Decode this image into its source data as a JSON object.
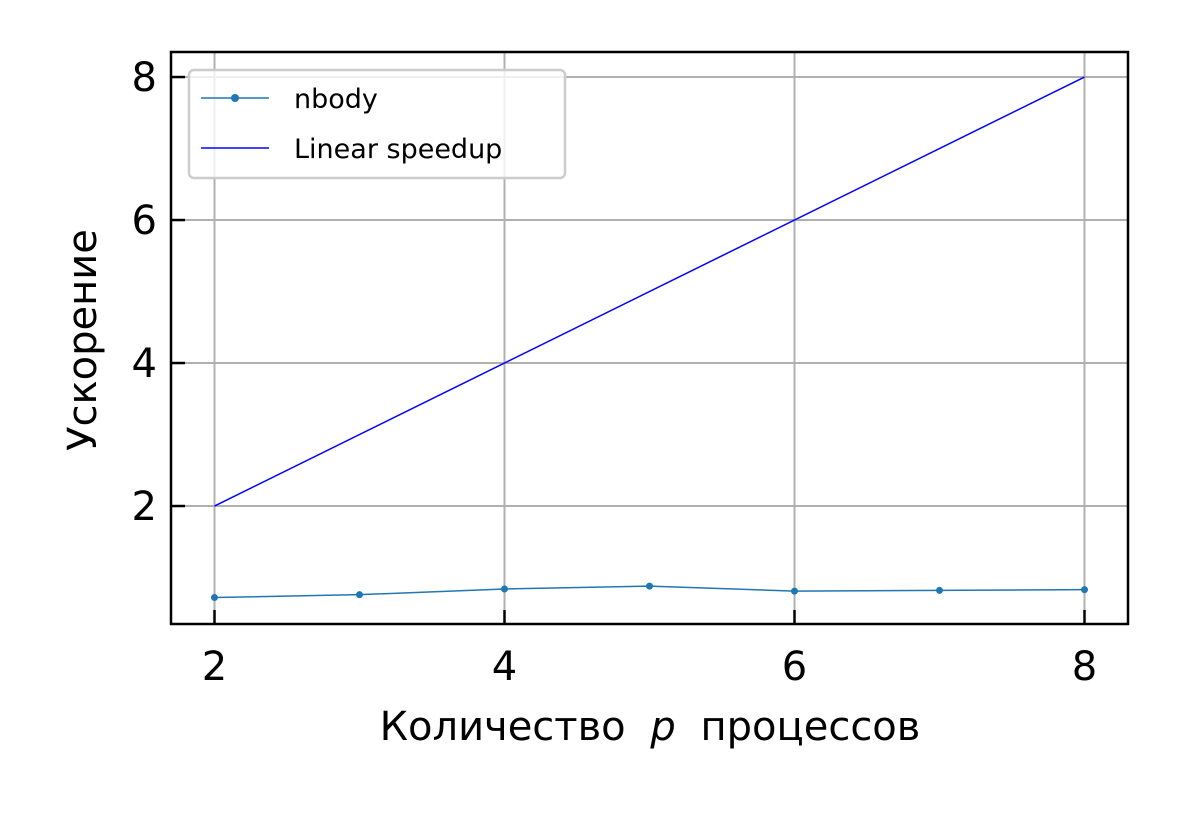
{
  "chart_data": {
    "type": "line",
    "xlabel": "Количество",
    "xlabel_var": "p",
    "xlabel_suffix": "процессов",
    "ylabel": "Ускорение",
    "xlim": [
      1.7,
      8.3
    ],
    "ylim": [
      0.35,
      8.35
    ],
    "xticks": [
      2,
      4,
      6,
      8
    ],
    "yticks": [
      2,
      4,
      6,
      8
    ],
    "grid": true,
    "legend_position": "top-left",
    "series": [
      {
        "name": "nbody",
        "color": "#1f77b4",
        "marker": true,
        "x": [
          2,
          3,
          4,
          5,
          6,
          7,
          8
        ],
        "y": [
          0.72,
          0.76,
          0.84,
          0.88,
          0.81,
          0.82,
          0.83
        ]
      },
      {
        "name": "Linear speedup",
        "color": "#0000ff",
        "marker": false,
        "x": [
          2,
          8
        ],
        "y": [
          2,
          8
        ]
      }
    ]
  }
}
